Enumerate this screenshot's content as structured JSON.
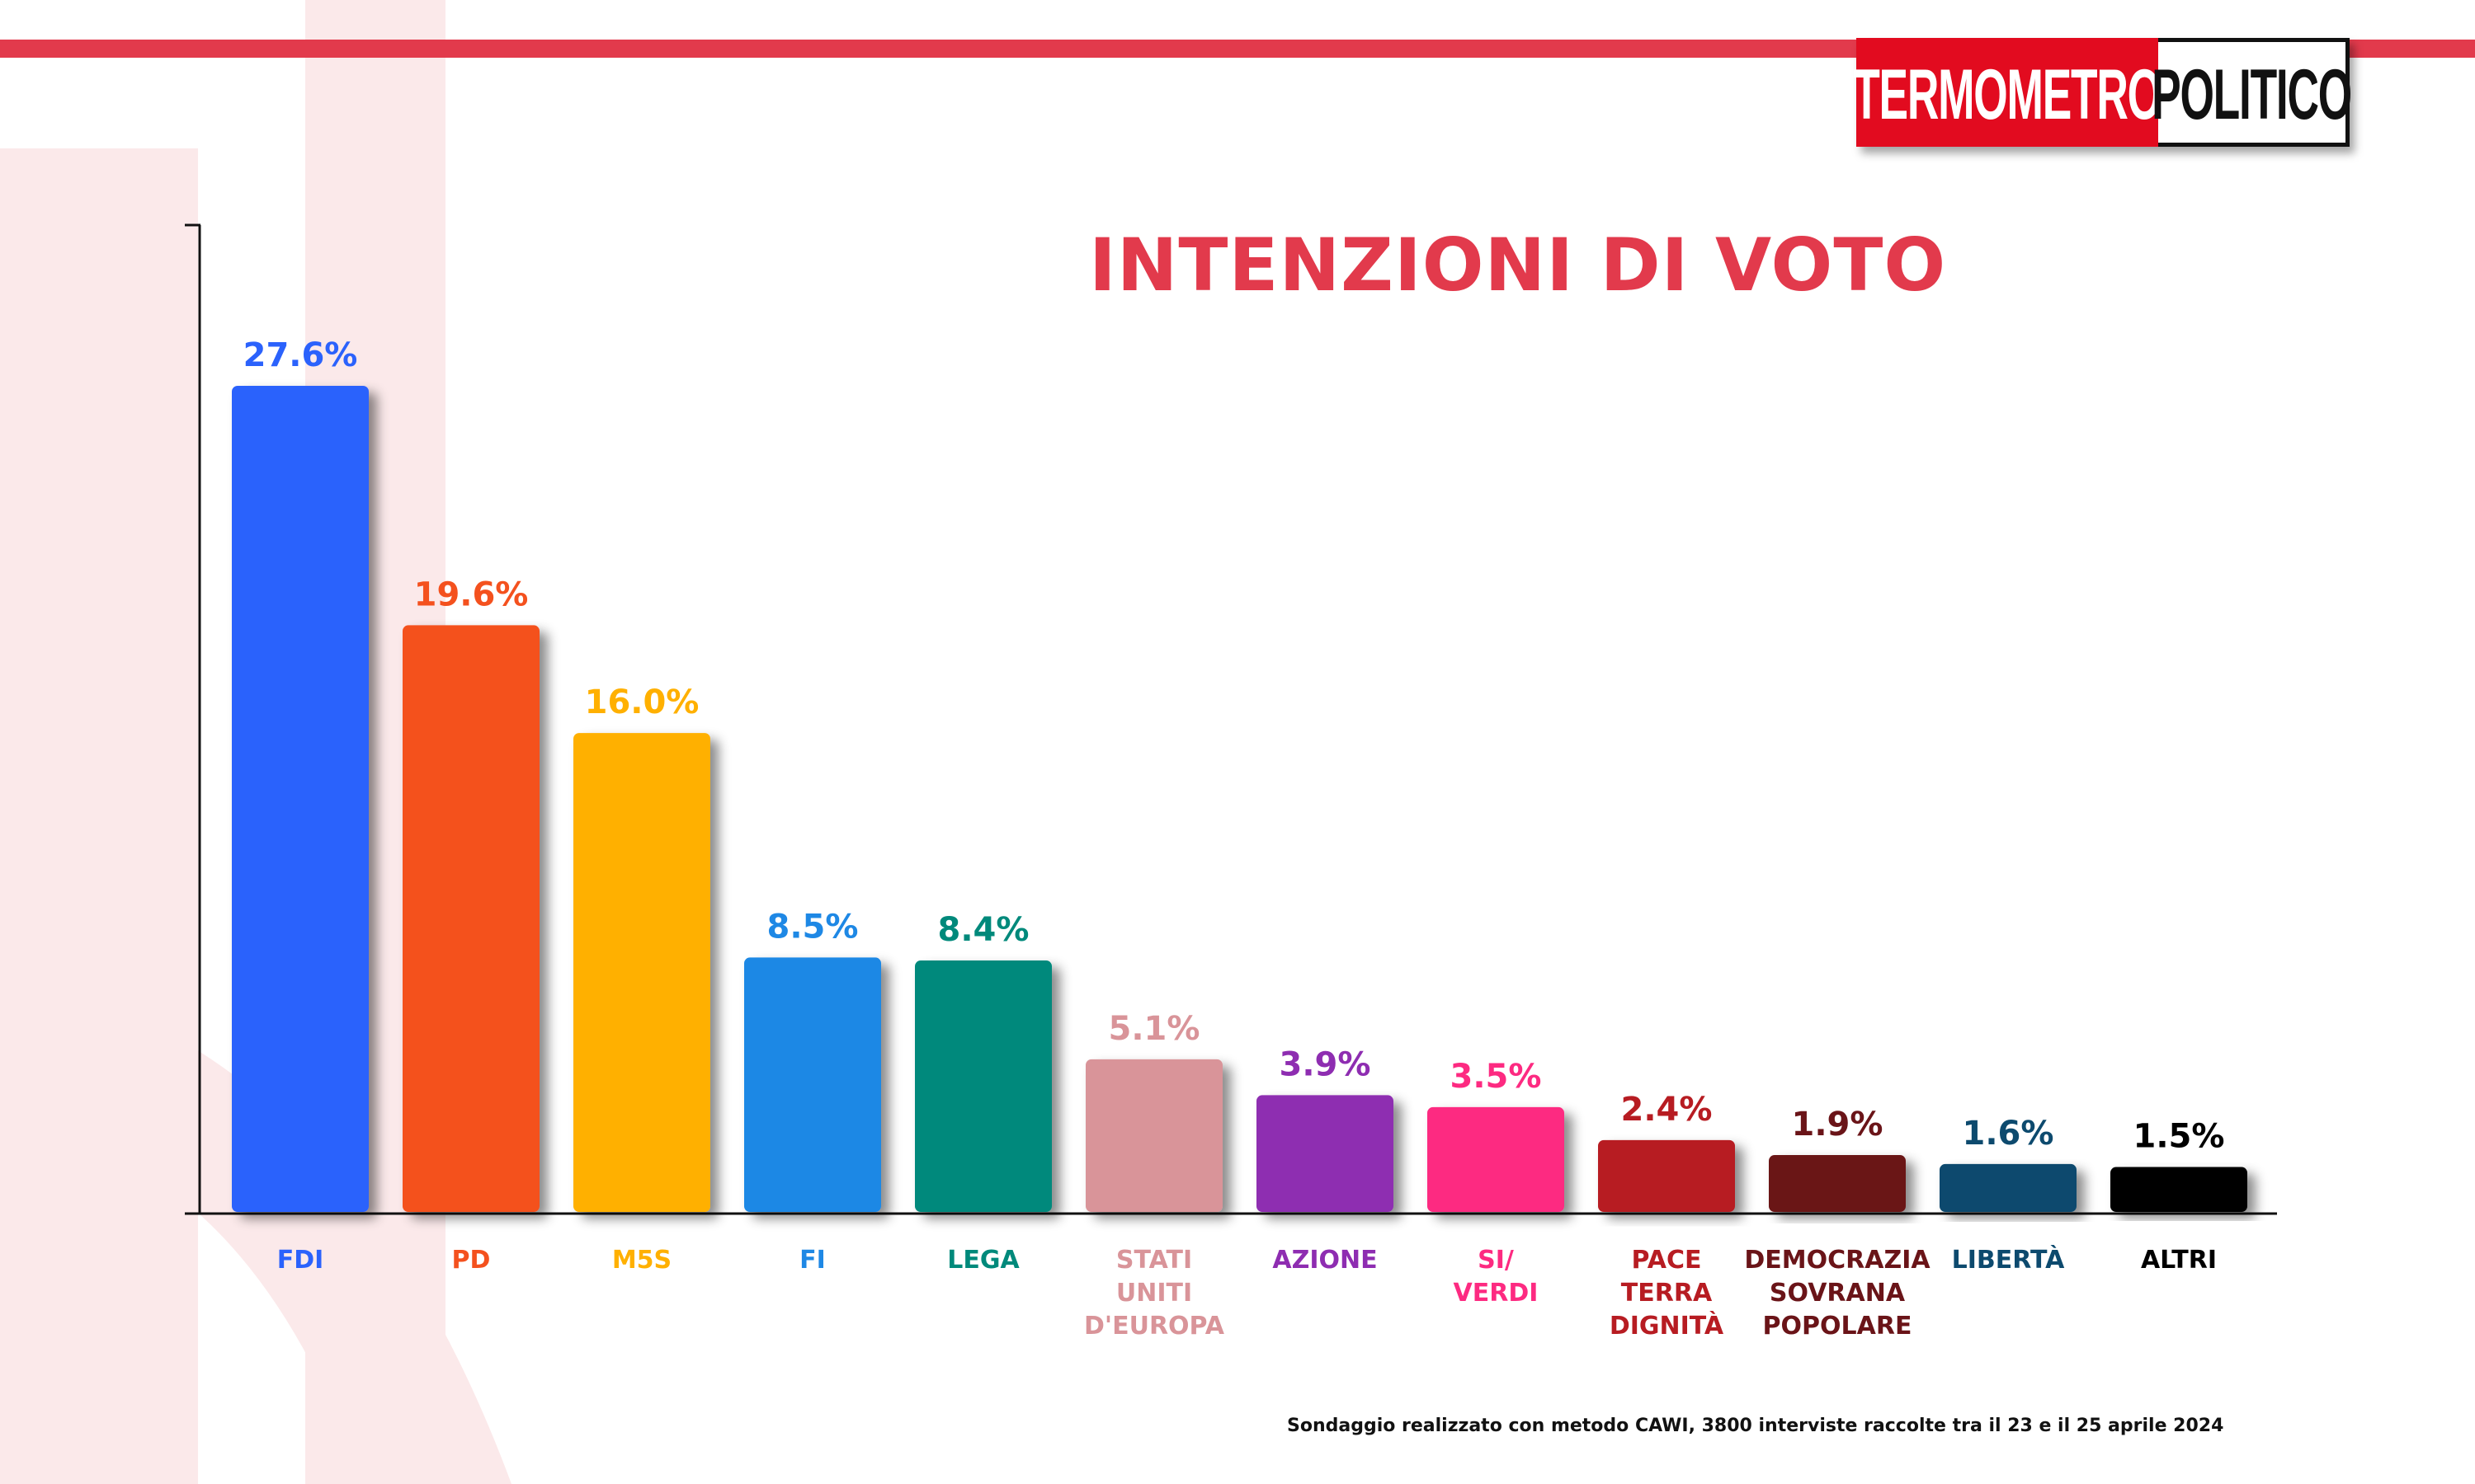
{
  "brand": {
    "logo_left": "TERMOMETRO",
    "logo_right": "POLITICO",
    "accent_color": "#e23a4c"
  },
  "footnote": "Sondaggio realizzato con metodo CAWI, 3800 interviste raccolte tra il 23 e il 25 aprile 2024",
  "chart_data": {
    "type": "bar",
    "title": "INTENZIONI DI VOTO",
    "xlabel": "",
    "ylabel": "",
    "ylim": [
      0,
      30
    ],
    "grid": false,
    "categories": [
      [
        "FDI"
      ],
      [
        "PD"
      ],
      [
        "M5S"
      ],
      [
        "FI"
      ],
      [
        "LEGA"
      ],
      [
        "STATI",
        "UNITI",
        "D'EUROPA"
      ],
      [
        "AZIONE"
      ],
      [
        "SI/",
        "VERDI"
      ],
      [
        "PACE",
        "TERRA",
        "DIGNITÀ"
      ],
      [
        "DEMOCRAZIA",
        "SOVRANA",
        "POPOLARE"
      ],
      [
        "LIBERTÀ"
      ],
      [
        "ALTRI"
      ]
    ],
    "values": [
      27.6,
      19.6,
      16.0,
      8.5,
      8.4,
      5.1,
      3.9,
      3.5,
      2.4,
      1.9,
      1.6,
      1.5
    ],
    "labels": [
      "27.6%",
      "19.6%",
      "16.0%",
      "8.5%",
      "8.4%",
      "5.1%",
      "3.9%",
      "3.5%",
      "2.4%",
      "1.9%",
      "1.6%",
      "1.5%"
    ],
    "colors": [
      "#2b62fc",
      "#f4511e",
      "#ffb000",
      "#1e88e5",
      "#00897b",
      "#d99499",
      "#8e2db1",
      "#fd2a81",
      "#b71c22",
      "#6a1418",
      "#0d4a6e",
      "#000000"
    ]
  }
}
